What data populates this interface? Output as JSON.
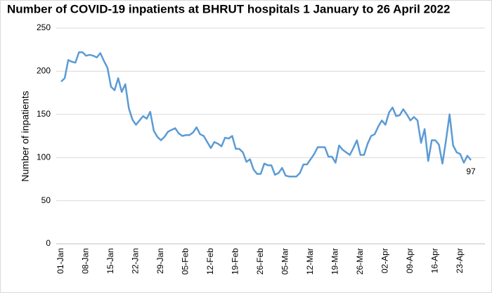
{
  "chart_data": {
    "type": "line",
    "title": "Number of COVID-19 inpatients at BHRUT hospitals 1 January to 26 April 2022",
    "y_label": "Number of inpatients",
    "categories": [
      "01-Jan",
      null,
      null,
      null,
      null,
      null,
      null,
      "08-Jan",
      null,
      null,
      null,
      null,
      null,
      null,
      "15-Jan",
      null,
      null,
      null,
      null,
      null,
      null,
      "22-Jan",
      null,
      null,
      null,
      null,
      null,
      null,
      "29-Jan",
      null,
      null,
      null,
      null,
      null,
      null,
      "05-Feb",
      null,
      null,
      null,
      null,
      null,
      null,
      "12-Feb",
      null,
      null,
      null,
      null,
      null,
      null,
      "19-Feb",
      null,
      null,
      null,
      null,
      null,
      null,
      "26-Feb",
      null,
      null,
      null,
      null,
      null,
      null,
      "05-Mar",
      null,
      null,
      null,
      null,
      null,
      null,
      "12-Mar",
      null,
      null,
      null,
      null,
      null,
      null,
      "19-Mar",
      null,
      null,
      null,
      null,
      null,
      null,
      "26-Mar",
      null,
      null,
      null,
      null,
      null,
      null,
      "02-Apr",
      null,
      null,
      null,
      null,
      null,
      null,
      "09-Apr",
      null,
      null,
      null,
      null,
      null,
      null,
      "16-Apr",
      null,
      null,
      null,
      null,
      null,
      null,
      "23-Apr",
      null,
      null,
      null
    ],
    "series": [
      {
        "name": "Inpatients",
        "color": "#5b9bd5",
        "values": [
          188,
          192,
          213,
          211,
          210,
          222,
          222,
          218,
          219,
          218,
          216,
          221,
          212,
          204,
          182,
          178,
          192,
          176,
          185,
          157,
          144,
          138,
          143,
          148,
          145,
          153,
          131,
          124,
          120,
          124,
          130,
          132,
          134,
          128,
          125,
          126,
          126,
          129,
          135,
          127,
          125,
          118,
          111,
          118,
          116,
          113,
          123,
          122,
          125,
          110,
          110,
          106,
          95,
          98,
          86,
          81,
          81,
          93,
          91,
          91,
          80,
          82,
          88,
          79,
          78,
          78,
          78,
          82,
          92,
          92,
          98,
          104,
          112,
          112,
          112,
          101,
          101,
          94,
          114,
          109,
          106,
          103,
          111,
          120,
          103,
          103,
          116,
          125,
          127,
          136,
          143,
          138,
          152,
          158,
          148,
          149,
          156,
          150,
          143,
          147,
          143,
          117,
          133,
          96,
          120,
          120,
          115,
          93,
          120,
          150,
          114,
          106,
          104,
          94,
          102,
          97
        ]
      }
    ],
    "ylim": [
      0,
      250
    ],
    "yticks": [
      0,
      50,
      100,
      150,
      200,
      250
    ],
    "grid": true,
    "data_labels": "last"
  }
}
